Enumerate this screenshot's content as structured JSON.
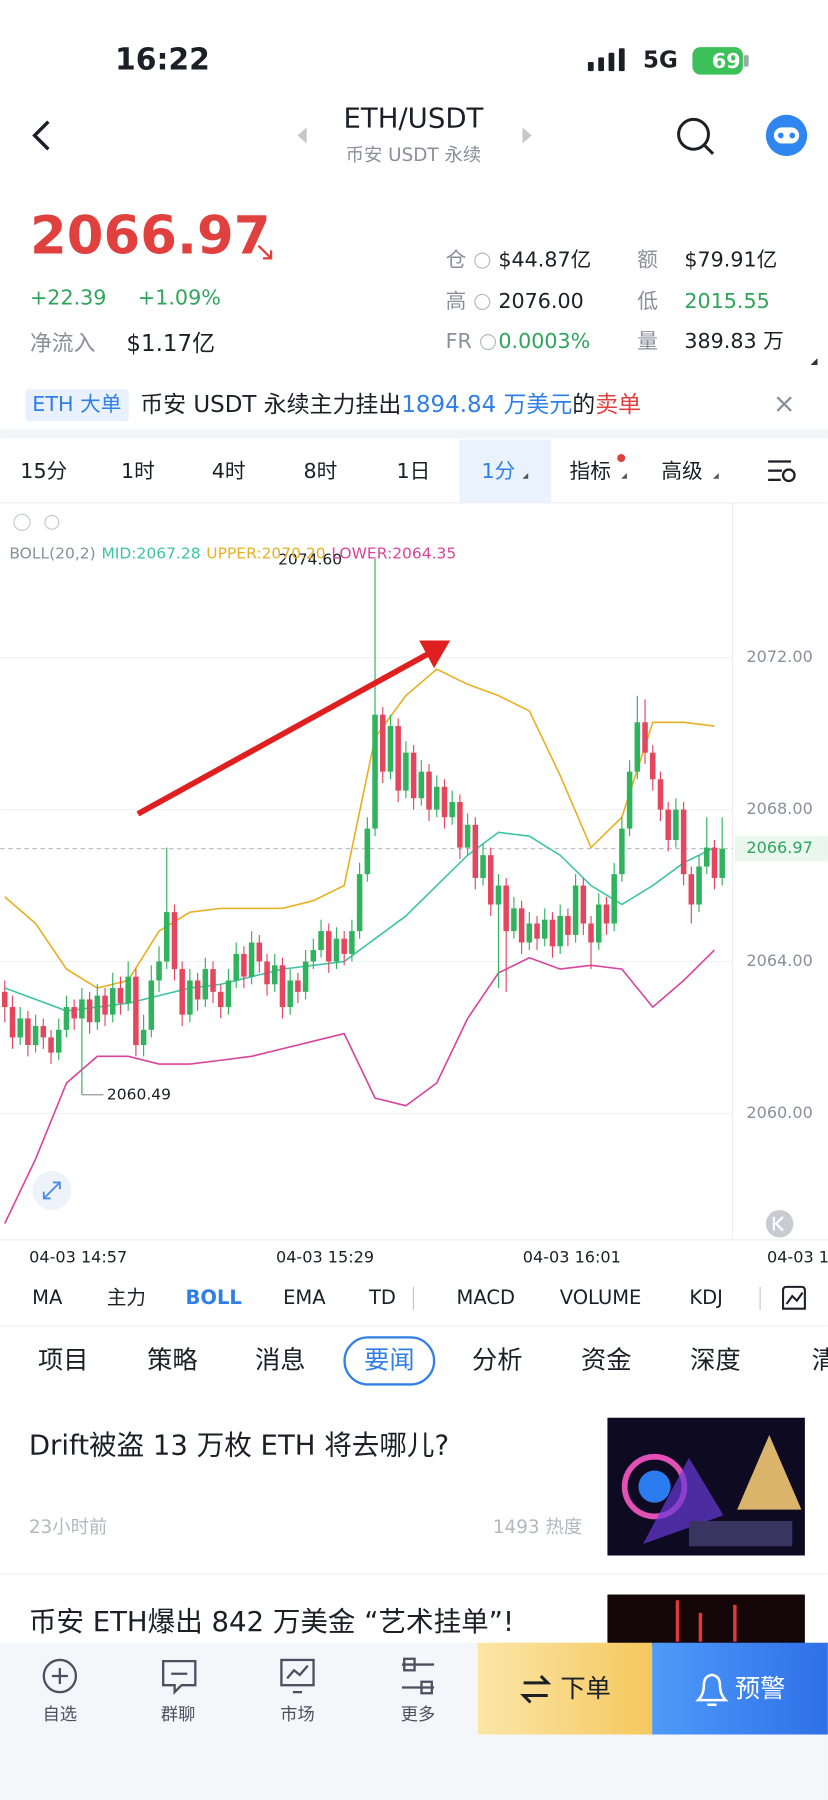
{
  "status_bar": {
    "time": "16:22",
    "network": "5G",
    "battery": "69"
  },
  "header": {
    "title": "ETH/USDT",
    "subtitle": "币安 USDT 永续"
  },
  "ticker": {
    "price": "2066.97",
    "change": "+22.39",
    "change_pct": "+1.09%",
    "net_inflow_label": "净流入",
    "net_inflow": "$1.17亿",
    "stats": [
      {
        "label": "仓",
        "value": "$44.87亿"
      },
      {
        "label": "额",
        "value": "$79.91亿"
      },
      {
        "label": "高",
        "value": "2076.00"
      },
      {
        "label": "低",
        "value": "2015.55"
      },
      {
        "label": "FR",
        "value": "0.0003%"
      },
      {
        "label": "量",
        "value": "389.83 万"
      }
    ]
  },
  "banner": {
    "tag": "ETH 大单",
    "text": "币安 USDT 永续主力挂出",
    "amount": "1894.84 万美元",
    "connector": "的",
    "side": "卖单"
  },
  "timeframes": [
    "15分",
    "1时",
    "4时",
    "8时",
    "1日",
    "1分",
    "指标",
    "高级"
  ],
  "chart": {
    "type": "candlestick",
    "indicator": "BOLL(20,2)",
    "mid_label": "MID:2067.28",
    "upper_label": "UPPER:2070.20",
    "lower_label": "LOWER:2064.35",
    "ylim": [
      2056.67,
      2076.02
    ],
    "yticks": [
      {
        "value": 2060,
        "label": "2060.00"
      },
      {
        "value": 2064,
        "label": "2064.00"
      },
      {
        "value": 2068,
        "label": "2068.00"
      },
      {
        "value": 2072,
        "label": "2072.00"
      }
    ],
    "x_labels": [
      "04-03 14:57",
      "04-03 15:29",
      "04-03 16:01",
      "04-03 1"
    ],
    "up_color": "#2fb35c",
    "down_color": "#e5465e",
    "last_price": 2066.97,
    "high": {
      "value": 2074.6,
      "label": "2074.60"
    },
    "low": 2060.49,
    "candles": [
      [
        2063.2,
        2063.5,
        2062.4,
        2062.8
      ],
      [
        2062.8,
        2063.1,
        2061.7,
        2062.0
      ],
      [
        2062.0,
        2062.8,
        2061.8,
        2062.5
      ],
      [
        2062.5,
        2062.7,
        2061.5,
        2061.8
      ],
      [
        2061.8,
        2062.6,
        2061.6,
        2062.3
      ],
      [
        2062.3,
        2062.5,
        2061.7,
        2062.0
      ],
      [
        2062.0,
        2062.2,
        2061.3,
        2061.6
      ],
      [
        2061.6,
        2062.5,
        2061.4,
        2062.2
      ],
      [
        2062.2,
        2063.1,
        2062.0,
        2062.8
      ],
      [
        2062.8,
        2063.0,
        2062.2,
        2062.5
      ],
      [
        2062.5,
        2063.3,
        2060.49,
        2063.0
      ],
      [
        2063.0,
        2063.2,
        2062.1,
        2062.4
      ],
      [
        2062.4,
        2063.4,
        2062.2,
        2063.1
      ],
      [
        2063.1,
        2063.3,
        2062.3,
        2062.6
      ],
      [
        2062.6,
        2063.7,
        2062.4,
        2063.3
      ],
      [
        2063.3,
        2063.6,
        2062.6,
        2062.9
      ],
      [
        2062.9,
        2064.0,
        2062.7,
        2063.6
      ],
      [
        2063.6,
        2063.8,
        2061.5,
        2061.8
      ],
      [
        2061.8,
        2062.6,
        2061.5,
        2062.2
      ],
      [
        2062.2,
        2063.9,
        2062.0,
        2063.5
      ],
      [
        2063.5,
        2064.4,
        2063.2,
        2064.0
      ],
      [
        2064.0,
        2067.0,
        2063.8,
        2065.3
      ],
      [
        2065.3,
        2065.5,
        2063.5,
        2063.8
      ],
      [
        2063.8,
        2064.0,
        2062.3,
        2062.6
      ],
      [
        2062.6,
        2063.8,
        2062.4,
        2063.5
      ],
      [
        2063.5,
        2063.7,
        2062.7,
        2063.0
      ],
      [
        2063.0,
        2064.1,
        2062.8,
        2063.8
      ],
      [
        2063.8,
        2064.0,
        2062.9,
        2063.2
      ],
      [
        2063.2,
        2063.4,
        2062.5,
        2062.8
      ],
      [
        2062.8,
        2063.8,
        2062.6,
        2063.5
      ],
      [
        2063.5,
        2064.5,
        2063.3,
        2064.2
      ],
      [
        2064.2,
        2064.4,
        2063.3,
        2063.6
      ],
      [
        2063.6,
        2064.8,
        2063.4,
        2064.5
      ],
      [
        2064.5,
        2064.7,
        2063.7,
        2064.0
      ],
      [
        2064.0,
        2064.2,
        2063.1,
        2063.4
      ],
      [
        2063.4,
        2064.2,
        2063.2,
        2063.9
      ],
      [
        2063.9,
        2064.1,
        2062.5,
        2062.8
      ],
      [
        2062.8,
        2063.8,
        2062.6,
        2063.5
      ],
      [
        2063.5,
        2063.7,
        2062.9,
        2063.2
      ],
      [
        2063.2,
        2064.3,
        2063.0,
        2064.0
      ],
      [
        2064.0,
        2064.6,
        2063.8,
        2064.3
      ],
      [
        2064.3,
        2065.1,
        2064.1,
        2064.8
      ],
      [
        2064.8,
        2065.0,
        2063.7,
        2064.0
      ],
      [
        2064.0,
        2064.9,
        2063.8,
        2064.6
      ],
      [
        2064.6,
        2064.8,
        2063.9,
        2064.2
      ],
      [
        2064.2,
        2065.1,
        2064.0,
        2064.8
      ],
      [
        2064.8,
        2066.6,
        2064.6,
        2066.3
      ],
      [
        2066.3,
        2067.8,
        2066.1,
        2067.5
      ],
      [
        2067.5,
        2074.6,
        2067.3,
        2070.5
      ],
      [
        2070.5,
        2070.7,
        2068.7,
        2069.0
      ],
      [
        2069.0,
        2070.5,
        2068.8,
        2070.2
      ],
      [
        2070.2,
        2070.4,
        2068.2,
        2068.5
      ],
      [
        2068.5,
        2069.8,
        2068.3,
        2069.5
      ],
      [
        2069.5,
        2069.7,
        2068.0,
        2068.3
      ],
      [
        2068.3,
        2069.3,
        2068.1,
        2069.0
      ],
      [
        2069.0,
        2069.2,
        2067.7,
        2068.0
      ],
      [
        2068.0,
        2068.9,
        2067.8,
        2068.6
      ],
      [
        2068.6,
        2068.8,
        2067.5,
        2067.8
      ],
      [
        2067.8,
        2068.5,
        2067.6,
        2068.2
      ],
      [
        2068.2,
        2068.4,
        2066.7,
        2067.0
      ],
      [
        2067.0,
        2067.9,
        2066.8,
        2067.6
      ],
      [
        2067.6,
        2067.8,
        2065.9,
        2066.2
      ],
      [
        2066.2,
        2067.1,
        2066.0,
        2066.8
      ],
      [
        2066.8,
        2067.0,
        2065.2,
        2065.5
      ],
      [
        2065.5,
        2066.3,
        2063.3,
        2066.0
      ],
      [
        2066.0,
        2066.2,
        2063.2,
        2064.8
      ],
      [
        2064.8,
        2065.7,
        2064.6,
        2065.4
      ],
      [
        2065.4,
        2065.6,
        2064.2,
        2064.5
      ],
      [
        2064.5,
        2065.3,
        2064.3,
        2065.0
      ],
      [
        2065.0,
        2065.2,
        2064.3,
        2064.6
      ],
      [
        2064.6,
        2065.4,
        2064.4,
        2065.1
      ],
      [
        2065.1,
        2065.3,
        2064.1,
        2064.4
      ],
      [
        2064.4,
        2065.5,
        2064.2,
        2065.2
      ],
      [
        2065.2,
        2065.4,
        2064.4,
        2064.7
      ],
      [
        2064.7,
        2066.3,
        2064.5,
        2066.0
      ],
      [
        2066.0,
        2066.2,
        2064.7,
        2065.0
      ],
      [
        2065.0,
        2065.2,
        2063.8,
        2064.5
      ],
      [
        2064.5,
        2065.8,
        2064.3,
        2065.5
      ],
      [
        2065.5,
        2065.7,
        2064.7,
        2065.0
      ],
      [
        2065.0,
        2066.6,
        2064.8,
        2066.3
      ],
      [
        2066.3,
        2067.8,
        2066.1,
        2067.5
      ],
      [
        2067.5,
        2069.3,
        2067.3,
        2069.0
      ],
      [
        2069.0,
        2071.0,
        2068.8,
        2070.3
      ],
      [
        2070.3,
        2070.9,
        2069.2,
        2069.5
      ],
      [
        2069.5,
        2069.7,
        2068.5,
        2068.8
      ],
      [
        2068.8,
        2069.0,
        2067.7,
        2068.0
      ],
      [
        2068.0,
        2068.2,
        2066.9,
        2067.2
      ],
      [
        2067.2,
        2068.3,
        2067.0,
        2068.0
      ],
      [
        2068.0,
        2068.2,
        2066.0,
        2066.3
      ],
      [
        2066.3,
        2066.5,
        2065.0,
        2065.5
      ],
      [
        2065.5,
        2066.8,
        2065.3,
        2066.5
      ],
      [
        2066.5,
        2067.8,
        2066.3,
        2067.0
      ],
      [
        2067.0,
        2067.2,
        2065.9,
        2066.2
      ],
      [
        2066.2,
        2067.8,
        2066.0,
        2066.97
      ]
    ],
    "boll": {
      "upper": {
        "color": "#e8b021",
        "values": [
          2065.7,
          2065.0,
          2063.8,
          2063.3,
          2063.5,
          2064.8,
          2065.3,
          2065.4,
          2065.4,
          2065.4,
          2065.6,
          2066.0,
          2069.9,
          2071.0,
          2071.7,
          2071.3,
          2071.0,
          2070.6,
          2068.9,
          2067.0,
          2067.8,
          2070.3,
          2070.3,
          2070.2
        ]
      },
      "mid": {
        "color": "#3ec4a6",
        "values": [
          2063.3,
          2063.0,
          2062.7,
          2062.8,
          2062.9,
          2063.1,
          2063.3,
          2063.4,
          2063.6,
          2063.8,
          2063.9,
          2064.0,
          2064.6,
          2065.2,
          2066.0,
          2066.8,
          2067.4,
          2067.3,
          2066.8,
          2066.0,
          2065.5,
          2066.0,
          2066.6,
          2067.0
        ]
      },
      "lower": {
        "color": "#d9449c",
        "values": [
          2057.1,
          2058.8,
          2060.8,
          2061.5,
          2061.5,
          2061.3,
          2061.3,
          2061.4,
          2061.5,
          2061.7,
          2061.9,
          2062.1,
          2060.4,
          2060.2,
          2060.8,
          2062.5,
          2063.7,
          2064.1,
          2063.8,
          2063.9,
          2063.8,
          2062.8,
          2063.5,
          2064.3
        ]
      }
    }
  },
  "indicator_tabs": [
    "MA",
    "主力",
    "BOLL",
    "EMA",
    "TD",
    "MACD",
    "VOLUME",
    "KDJ"
  ],
  "news_tabs": [
    "项目",
    "策略",
    "消息",
    "要闻",
    "分析",
    "资金",
    "深度",
    "清"
  ],
  "news": [
    {
      "title": "Drift被盗 13 万枚 ETH 将去哪儿?",
      "time": "23小时前",
      "heat": "1493 热度"
    },
    {
      "title": "币安 ETH爆出 842 万美金 “艺术挂单”!"
    }
  ],
  "bottom_nav": {
    "tabs": [
      "自选",
      "群聊",
      "市场",
      "更多"
    ],
    "order": "下单",
    "alert": "预警"
  }
}
